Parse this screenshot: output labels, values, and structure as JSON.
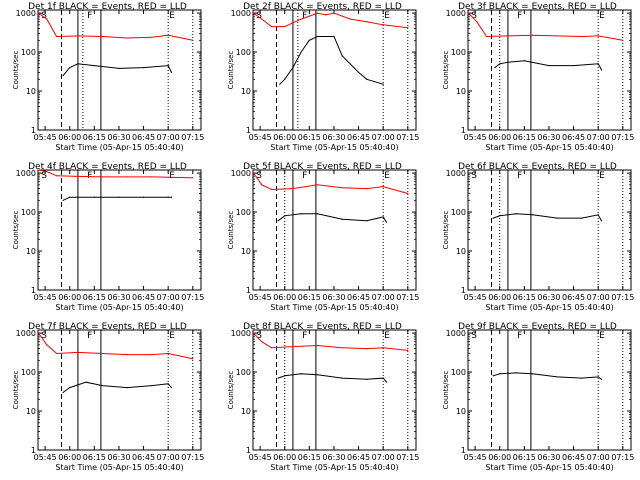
{
  "chart_data": [
    {
      "type": "line",
      "title": "Det 1f BLACK = Events, RED = LLD",
      "ylabel": "Counts/sec",
      "xlabel": "Start Time (05-Apr-15 05:40:40)",
      "x_ticks": [
        "05:45",
        "06:00",
        "06:15",
        "06:30",
        "06:45",
        "07:00",
        "07:15"
      ],
      "y_ticks": [
        "1",
        "10",
        "100",
        "1000"
      ],
      "scale": "log",
      "ylim": [
        1,
        1200
      ],
      "xlim": [
        "05:40:40",
        "07:20:00"
      ],
      "markers": [
        {
          "label": "S",
          "time": "05:42"
        },
        {
          "label": "F",
          "time": "06:10"
        },
        {
          "label": "E",
          "time": "07:00"
        }
      ],
      "vlines": [
        {
          "time": "05:55",
          "style": "dashed"
        },
        {
          "time": "06:05",
          "style": "solid"
        },
        {
          "time": "06:19",
          "style": "solid"
        },
        {
          "time": "06:08",
          "style": "dotted"
        },
        {
          "time": "07:00",
          "style": "dotted"
        },
        {
          "time": "07:15",
          "style": "dotted"
        }
      ],
      "series": [
        {
          "name": "LLD",
          "color": "#ff0000",
          "x": [
            "05:41",
            "05:46",
            "05:52",
            "06:05",
            "06:20",
            "06:35",
            "06:50",
            "07:00",
            "07:15"
          ],
          "values": [
            1000,
            700,
            250,
            260,
            250,
            230,
            240,
            270,
            200
          ]
        },
        {
          "name": "Events",
          "color": "#000000",
          "x": [
            "05:56",
            "06:00",
            "06:05",
            "06:15",
            "06:30",
            "06:45",
            "07:00",
            "07:02"
          ],
          "values": [
            25,
            40,
            50,
            45,
            38,
            40,
            45,
            30
          ]
        }
      ]
    },
    {
      "type": "line",
      "title": "Det 2f BLACK = Events, RED = LLD",
      "ylabel": "Counts/sec",
      "xlabel": "Start Time (05-Apr-15 05:40:40)",
      "x_ticks": [
        "05:45",
        "06:00",
        "06:15",
        "06:30",
        "06:45",
        "07:00",
        "07:15"
      ],
      "y_ticks": [
        "1",
        "10",
        "100",
        "1000"
      ],
      "scale": "log",
      "ylim": [
        1,
        1200
      ],
      "xlim": [
        "05:40:40",
        "07:20:00"
      ],
      "markers": [
        {
          "label": "S",
          "time": "05:42"
        },
        {
          "label": "F",
          "time": "06:10"
        },
        {
          "label": "E",
          "time": "07:00"
        }
      ],
      "vlines": [
        {
          "time": "05:55",
          "style": "dashed"
        },
        {
          "time": "06:05",
          "style": "solid"
        },
        {
          "time": "06:19",
          "style": "solid"
        },
        {
          "time": "06:08",
          "style": "dotted"
        },
        {
          "time": "07:00",
          "style": "dotted"
        },
        {
          "time": "07:15",
          "style": "dotted"
        }
      ],
      "series": [
        {
          "name": "LLD",
          "color": "#ff0000",
          "x": [
            "05:41",
            "05:46",
            "05:52",
            "06:00",
            "06:10",
            "06:20",
            "06:25",
            "06:30",
            "06:40",
            "06:50",
            "07:00",
            "07:15"
          ],
          "values": [
            1000,
            700,
            450,
            450,
            700,
            1000,
            900,
            1000,
            700,
            600,
            500,
            420
          ]
        },
        {
          "name": "Events",
          "color": "#000000",
          "x": [
            "05:57",
            "06:00",
            "06:05",
            "06:10",
            "06:15",
            "06:20",
            "06:30",
            "06:35",
            "06:45",
            "06:50",
            "07:00"
          ],
          "values": [
            15,
            20,
            40,
            100,
            200,
            250,
            250,
            80,
            30,
            20,
            15
          ]
        }
      ]
    },
    {
      "type": "line",
      "title": "Det 3f BLACK = Events, RED = LLD",
      "ylabel": "Counts/sec",
      "xlabel": "Start Time (05-Apr-15 05:40:40)",
      "x_ticks": [
        "05:45",
        "06:00",
        "06:15",
        "06:30",
        "06:45",
        "07:00",
        "07:15"
      ],
      "y_ticks": [
        "1",
        "10",
        "100",
        "1000"
      ],
      "scale": "log",
      "ylim": [
        1,
        1200
      ],
      "xlim": [
        "05:40:40",
        "07:20:00"
      ],
      "markers": [
        {
          "label": "S",
          "time": "05:42"
        },
        {
          "label": "F",
          "time": "06:10"
        },
        {
          "label": "E",
          "time": "07:00"
        }
      ],
      "vlines": [
        {
          "time": "05:55",
          "style": "dashed"
        },
        {
          "time": "06:05",
          "style": "solid"
        },
        {
          "time": "06:19",
          "style": "solid"
        },
        {
          "time": "06:00",
          "style": "dotted"
        },
        {
          "time": "07:00",
          "style": "dotted"
        },
        {
          "time": "07:15",
          "style": "dotted"
        }
      ],
      "series": [
        {
          "name": "LLD",
          "color": "#ff0000",
          "x": [
            "05:41",
            "05:46",
            "05:52",
            "06:05",
            "06:20",
            "06:35",
            "06:50",
            "07:00",
            "07:15"
          ],
          "values": [
            1000,
            600,
            250,
            260,
            270,
            260,
            250,
            260,
            200
          ]
        },
        {
          "name": "Events",
          "color": "#000000",
          "x": [
            "05:57",
            "06:00",
            "06:05",
            "06:15",
            "06:30",
            "06:45",
            "07:00",
            "07:02"
          ],
          "values": [
            40,
            50,
            55,
            60,
            45,
            45,
            50,
            35
          ]
        }
      ]
    },
    {
      "type": "line",
      "title": "Det 4f BLACK = Events, RED = LLD",
      "ylabel": "Counts/sec",
      "xlabel": "Start Time (05-Apr-15 05:40:40)",
      "x_ticks": [
        "05:45",
        "06:00",
        "06:15",
        "06:30",
        "06:45",
        "07:00",
        "07:15"
      ],
      "y_ticks": [
        "1",
        "10",
        "100",
        "1000"
      ],
      "scale": "log",
      "ylim": [
        1,
        1200
      ],
      "xlim": [
        "05:40:40",
        "07:20:00"
      ],
      "markers": [
        {
          "label": "S",
          "time": "05:42"
        },
        {
          "label": "F",
          "time": "06:10"
        },
        {
          "label": "E",
          "time": "07:00"
        }
      ],
      "vlines": [
        {
          "time": "05:55",
          "style": "dashed"
        },
        {
          "time": "06:05",
          "style": "solid"
        },
        {
          "time": "06:19",
          "style": "solid"
        }
      ],
      "series": [
        {
          "name": "LLD",
          "color": "#ff0000",
          "x": [
            "05:41",
            "05:46",
            "05:52",
            "06:05",
            "06:20",
            "06:35",
            "06:50",
            "07:00",
            "07:15"
          ],
          "values": [
            1200,
            1100,
            850,
            820,
            800,
            800,
            800,
            780,
            760
          ]
        },
        {
          "name": "Events",
          "color": "#000000",
          "x": [
            "05:56",
            "06:00",
            "06:15",
            "06:30",
            "06:45",
            "07:00",
            "07:02"
          ],
          "values": [
            200,
            240,
            240,
            240,
            240,
            240,
            240
          ]
        }
      ]
    },
    {
      "type": "line",
      "title": "Det 5f BLACK = Events, RED = LLD",
      "ylabel": "Counts/sec",
      "xlabel": "Start Time (05-Apr-15 05:40:40)",
      "x_ticks": [
        "05:45",
        "06:00",
        "06:15",
        "06:30",
        "06:45",
        "07:00",
        "07:15"
      ],
      "y_ticks": [
        "1",
        "10",
        "100",
        "1000"
      ],
      "scale": "log",
      "ylim": [
        1,
        1200
      ],
      "xlim": [
        "05:40:40",
        "07:20:00"
      ],
      "markers": [
        {
          "label": "S",
          "time": "05:42"
        },
        {
          "label": "F",
          "time": "06:10"
        },
        {
          "label": "E",
          "time": "07:00"
        }
      ],
      "vlines": [
        {
          "time": "05:55",
          "style": "dashed"
        },
        {
          "time": "06:05",
          "style": "solid"
        },
        {
          "time": "06:19",
          "style": "solid"
        },
        {
          "time": "06:00",
          "style": "dotted"
        },
        {
          "time": "07:00",
          "style": "dotted"
        },
        {
          "time": "07:15",
          "style": "dotted"
        }
      ],
      "series": [
        {
          "name": "LLD",
          "color": "#ff0000",
          "x": [
            "05:41",
            "05:46",
            "05:52",
            "06:05",
            "06:20",
            "06:35",
            "06:50",
            "07:00",
            "07:15"
          ],
          "values": [
            1000,
            500,
            380,
            400,
            500,
            420,
            400,
            450,
            300
          ]
        },
        {
          "name": "Events",
          "color": "#000000",
          "x": [
            "05:56",
            "06:00",
            "06:10",
            "06:20",
            "06:35",
            "06:50",
            "07:00",
            "07:02"
          ],
          "values": [
            60,
            80,
            90,
            90,
            65,
            60,
            75,
            55
          ]
        }
      ]
    },
    {
      "type": "line",
      "title": "Det 6f BLACK = Events, RED = LLD",
      "ylabel": "Counts/sec",
      "xlabel": "Start Time (05-Apr-15 05:40:40)",
      "x_ticks": [
        "05:45",
        "06:00",
        "06:15",
        "06:30",
        "06:45",
        "07:00",
        "07:15"
      ],
      "y_ticks": [
        "1",
        "10",
        "100",
        "1000"
      ],
      "scale": "log",
      "ylim": [
        1,
        1200
      ],
      "xlim": [
        "05:40:40",
        "07:20:00"
      ],
      "markers": [
        {
          "label": "S",
          "time": "05:42"
        },
        {
          "label": "F",
          "time": "06:10"
        },
        {
          "label": "E",
          "time": "07:00"
        }
      ],
      "vlines": [
        {
          "time": "05:55",
          "style": "dashed"
        },
        {
          "time": "06:05",
          "style": "solid"
        },
        {
          "time": "06:19",
          "style": "solid"
        },
        {
          "time": "06:00",
          "style": "dotted"
        },
        {
          "time": "07:00",
          "style": "dotted"
        },
        {
          "time": "07:15",
          "style": "dotted"
        }
      ],
      "series": [
        {
          "name": "Events",
          "color": "#000000",
          "x": [
            "05:56",
            "06:00",
            "06:10",
            "06:20",
            "06:35",
            "06:50",
            "07:00",
            "07:02"
          ],
          "values": [
            70,
            80,
            90,
            85,
            70,
            70,
            85,
            60
          ]
        }
      ]
    },
    {
      "type": "line",
      "title": "Det 7f BLACK = Events, RED = LLD",
      "ylabel": "Counts/sec",
      "xlabel": "Start Time (05-Apr-15 05:40:40)",
      "x_ticks": [
        "05:45",
        "06:00",
        "06:15",
        "06:30",
        "06:45",
        "07:00",
        "07:15"
      ],
      "y_ticks": [
        "1",
        "10",
        "100",
        "1000"
      ],
      "scale": "log",
      "ylim": [
        1,
        1200
      ],
      "xlim": [
        "05:40:40",
        "07:20:00"
      ],
      "markers": [
        {
          "label": "S",
          "time": "05:42"
        },
        {
          "label": "F",
          "time": "06:10"
        },
        {
          "label": "E",
          "time": "07:00"
        }
      ],
      "vlines": [
        {
          "time": "05:55",
          "style": "dashed"
        },
        {
          "time": "06:05",
          "style": "solid"
        },
        {
          "time": "06:19",
          "style": "solid"
        },
        {
          "time": "07:00",
          "style": "dotted"
        },
        {
          "time": "07:15",
          "style": "dotted"
        }
      ],
      "series": [
        {
          "name": "LLD",
          "color": "#ff0000",
          "x": [
            "05:41",
            "05:46",
            "05:52",
            "06:05",
            "06:20",
            "06:35",
            "06:50",
            "07:00",
            "07:15"
          ],
          "values": [
            1000,
            500,
            300,
            320,
            300,
            280,
            280,
            300,
            220
          ]
        },
        {
          "name": "Events",
          "color": "#000000",
          "x": [
            "05:56",
            "06:00",
            "06:10",
            "06:20",
            "06:35",
            "06:50",
            "07:00",
            "07:02"
          ],
          "values": [
            30,
            40,
            55,
            45,
            40,
            45,
            50,
            40
          ]
        }
      ]
    },
    {
      "type": "line",
      "title": "Det 8f BLACK = Events, RED = LLD",
      "ylabel": "Counts/sec",
      "xlabel": "Start Time (05-Apr-15 05:40:40)",
      "x_ticks": [
        "05:45",
        "06:00",
        "06:15",
        "06:30",
        "06:45",
        "07:00",
        "07:15"
      ],
      "y_ticks": [
        "1",
        "10",
        "100",
        "1000"
      ],
      "scale": "log",
      "ylim": [
        1,
        1200
      ],
      "xlim": [
        "05:40:40",
        "07:20:00"
      ],
      "markers": [
        {
          "label": "S",
          "time": "05:42"
        },
        {
          "label": "F",
          "time": "06:10"
        },
        {
          "label": "E",
          "time": "07:00"
        }
      ],
      "vlines": [
        {
          "time": "05:55",
          "style": "dashed"
        },
        {
          "time": "06:05",
          "style": "solid"
        },
        {
          "time": "06:19",
          "style": "solid"
        },
        {
          "time": "06:00",
          "style": "dotted"
        },
        {
          "time": "07:00",
          "style": "dotted"
        },
        {
          "time": "07:15",
          "style": "dotted"
        }
      ],
      "series": [
        {
          "name": "LLD",
          "color": "#ff0000",
          "x": [
            "05:41",
            "05:46",
            "05:52",
            "06:05",
            "06:20",
            "06:35",
            "06:50",
            "07:00",
            "07:15"
          ],
          "values": [
            1000,
            600,
            420,
            450,
            480,
            420,
            400,
            420,
            360
          ]
        },
        {
          "name": "Events",
          "color": "#000000",
          "x": [
            "05:56",
            "06:00",
            "06:10",
            "06:20",
            "06:35",
            "06:50",
            "07:00",
            "07:02"
          ],
          "values": [
            70,
            80,
            90,
            85,
            70,
            65,
            70,
            55
          ]
        }
      ]
    },
    {
      "type": "line",
      "title": "Det 9f BLACK = Events, RED = LLD",
      "ylabel": "Counts/sec",
      "xlabel": "Start Time (05-Apr-15 05:40:40)",
      "x_ticks": [
        "05:45",
        "06:00",
        "06:15",
        "06:30",
        "06:45",
        "07:00",
        "07:15"
      ],
      "y_ticks": [
        "1",
        "10",
        "100",
        "1000"
      ],
      "scale": "log",
      "ylim": [
        1,
        1200
      ],
      "xlim": [
        "05:40:40",
        "07:20:00"
      ],
      "markers": [
        {
          "label": "S",
          "time": "05:42"
        },
        {
          "label": "F",
          "time": "06:10"
        },
        {
          "label": "E",
          "time": "07:00"
        }
      ],
      "vlines": [
        {
          "time": "05:55",
          "style": "dashed"
        },
        {
          "time": "06:05",
          "style": "solid"
        },
        {
          "time": "06:19",
          "style": "solid"
        },
        {
          "time": "07:00",
          "style": "dotted"
        },
        {
          "time": "07:15",
          "style": "dotted"
        }
      ],
      "series": [
        {
          "name": "Events",
          "color": "#000000",
          "x": [
            "05:56",
            "06:00",
            "06:10",
            "06:20",
            "06:35",
            "06:50",
            "07:00",
            "07:02"
          ],
          "values": [
            80,
            90,
            95,
            90,
            75,
            70,
            75,
            65
          ]
        }
      ]
    }
  ]
}
